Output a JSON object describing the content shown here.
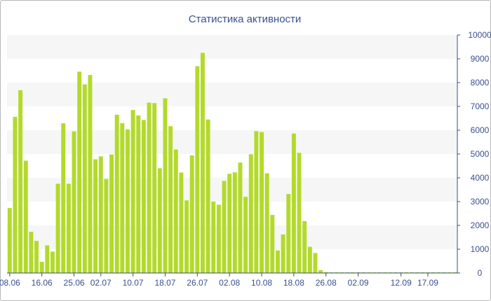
{
  "chart_data": {
    "type": "bar",
    "title": "Статистика активности",
    "xlabel": "",
    "ylabel": "",
    "ylim": [
      0,
      10000
    ],
    "y_ticks": [
      0,
      1000,
      2000,
      3000,
      4000,
      5000,
      6000,
      7000,
      8000,
      9000,
      10000
    ],
    "x_tick_labels": [
      "08.06",
      "16.06",
      "25.06",
      "02.07",
      "10.07",
      "18.07",
      "26.07",
      "02.08",
      "10.08",
      "18.08",
      "26.08",
      "02.09",
      "12.09",
      "17.09"
    ],
    "x_tick_positions": [
      0,
      6,
      12,
      17,
      23,
      29,
      35,
      41,
      47,
      53,
      59,
      65,
      73,
      78
    ],
    "grid": "alternating horizontal bands",
    "legend": "none",
    "colors": {
      "bar": "#b3da2b",
      "band": "#f6f6f6",
      "axis": "#3a4f8f",
      "title": "#3a4f8f"
    },
    "values": [
      2730,
      6560,
      7680,
      4720,
      1730,
      1350,
      470,
      1160,
      900,
      3750,
      6290,
      3750,
      5950,
      8460,
      7920,
      8320,
      4780,
      4900,
      3950,
      4980,
      6650,
      6300,
      6030,
      6850,
      6620,
      6430,
      7160,
      7140,
      4400,
      7340,
      6170,
      5190,
      4220,
      3050,
      4940,
      8690,
      9250,
      6450,
      3000,
      2870,
      3870,
      4170,
      4230,
      4640,
      3200,
      4990,
      5960,
      5920,
      4190,
      2440,
      950,
      1620,
      3320,
      5860,
      5050,
      2180,
      1100,
      840,
      120,
      40,
      30,
      30,
      30,
      30,
      30,
      30,
      30,
      30,
      30,
      30,
      30,
      30,
      30,
      30,
      30,
      30,
      30,
      30,
      30,
      30,
      30,
      30,
      30,
      30
    ]
  }
}
